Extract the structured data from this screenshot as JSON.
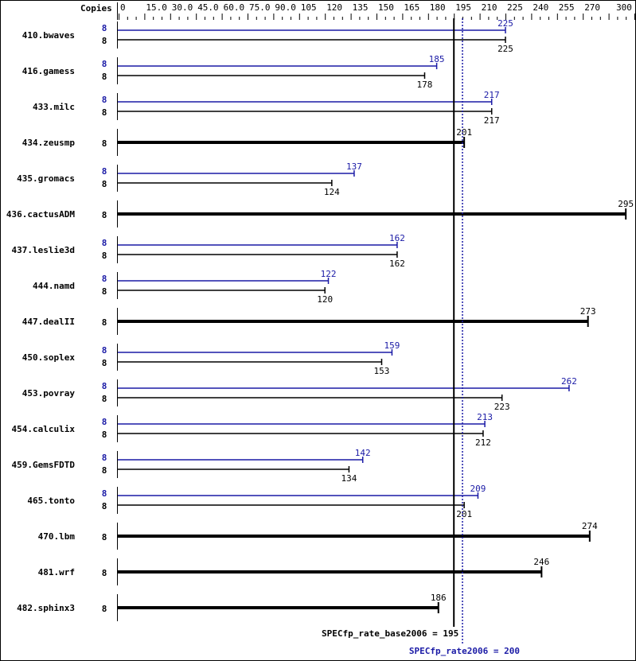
{
  "chart_data": {
    "type": "bar",
    "orientation": "horizontal",
    "axis_label": "Copies",
    "xlim": [
      0,
      300
    ],
    "ticks": [
      "0",
      "15.0",
      "30.0",
      "45.0",
      "60.0",
      "75.0",
      "90.0",
      "105",
      "120",
      "135",
      "150",
      "165",
      "180",
      "195",
      "210",
      "225",
      "240",
      "255",
      "270",
      "300"
    ],
    "tick_values": [
      0,
      15,
      30,
      45,
      60,
      75,
      90,
      105,
      120,
      135,
      150,
      165,
      180,
      195,
      210,
      225,
      240,
      255,
      270,
      300
    ],
    "benchmarks": [
      {
        "name": "410.bwaves",
        "copies_peak": "8",
        "copies_base": "8",
        "peak": 225,
        "base": 225
      },
      {
        "name": "416.gamess",
        "copies_peak": "8",
        "copies_base": "8",
        "peak": 185,
        "base": 178
      },
      {
        "name": "433.milc",
        "copies_peak": "8",
        "copies_base": "8",
        "peak": 217,
        "base": 217
      },
      {
        "name": "434.zeusmp",
        "copies_base": "8",
        "base": 201
      },
      {
        "name": "435.gromacs",
        "copies_peak": "8",
        "copies_base": "8",
        "peak": 137,
        "base": 124
      },
      {
        "name": "436.cactusADM",
        "copies_base": "8",
        "base": 295
      },
      {
        "name": "437.leslie3d",
        "copies_peak": "8",
        "copies_base": "8",
        "peak": 162,
        "base": 162
      },
      {
        "name": "444.namd",
        "copies_peak": "8",
        "copies_base": "8",
        "peak": 122,
        "base": 120
      },
      {
        "name": "447.dealII",
        "copies_base": "8",
        "base": 273
      },
      {
        "name": "450.soplex",
        "copies_peak": "8",
        "copies_base": "8",
        "peak": 159,
        "base": 153
      },
      {
        "name": "453.povray",
        "copies_peak": "8",
        "copies_base": "8",
        "peak": 262,
        "base": 223
      },
      {
        "name": "454.calculix",
        "copies_peak": "8",
        "copies_base": "8",
        "peak": 213,
        "base": 212
      },
      {
        "name": "459.GemsFDTD",
        "copies_peak": "8",
        "copies_base": "8",
        "peak": 142,
        "base": 134
      },
      {
        "name": "465.tonto",
        "copies_peak": "8",
        "copies_base": "8",
        "peak": 209,
        "base": 201
      },
      {
        "name": "470.lbm",
        "copies_base": "8",
        "base": 274
      },
      {
        "name": "481.wrf",
        "copies_base": "8",
        "base": 246
      },
      {
        "name": "482.sphinx3",
        "copies_base": "8",
        "base": 186
      }
    ],
    "base_summary": {
      "label": "SPECfp_rate_base2006 = 195",
      "value": 195
    },
    "peak_summary": {
      "label": "SPECfp_rate2006 = 200",
      "value": 200
    },
    "colors": {
      "base": "#000000",
      "peak": "#1a1aa6"
    }
  }
}
